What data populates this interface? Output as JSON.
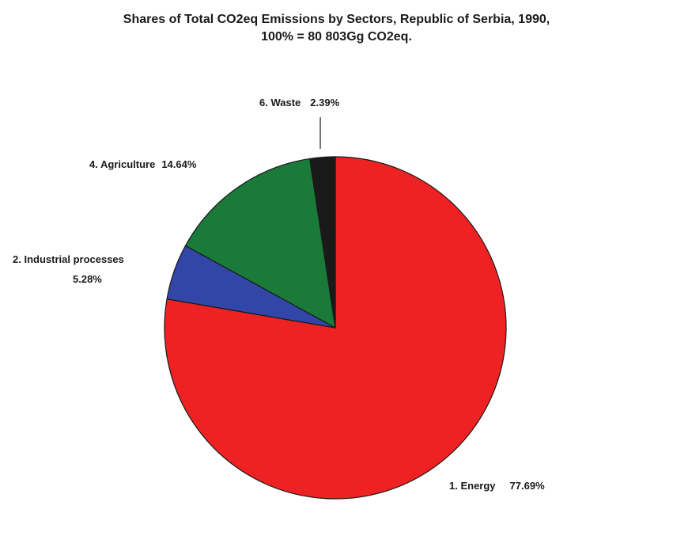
{
  "chart_data": {
    "type": "pie",
    "title": "Shares of Total CO2eq Emissions by Sectors, Republic of Serbia, 1990,",
    "subtitle": "100% = 80 803Gg CO2eq.",
    "slices": [
      {
        "label": "1. Energy",
        "value": 77.69,
        "value_label": "77.69%",
        "color": "#ee2222"
      },
      {
        "label": "2. Industrial processes",
        "value": 5.28,
        "value_label": "5.28%",
        "color": "#3246a8"
      },
      {
        "label": "4. Agriculture",
        "value": 14.64,
        "value_label": "14.64%",
        "color": "#1a7a3a"
      },
      {
        "label": "6. Waste",
        "value": 2.39,
        "value_label": "2.39%",
        "color": "#1a1a1a"
      }
    ]
  }
}
